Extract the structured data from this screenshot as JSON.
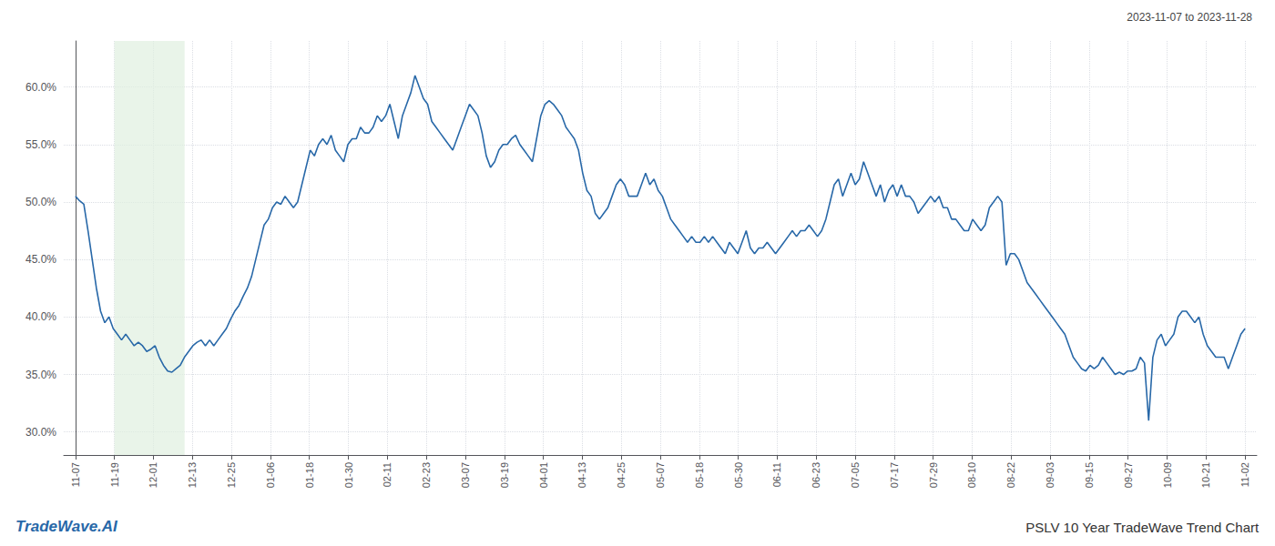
{
  "chart_data": {
    "type": "line",
    "title": "PSLV 10 Year TradeWave Trend Chart",
    "subtitle": "2023-11-07 to 2023-11-28",
    "annotation": "TradeWave.AI",
    "color": "#2868a8",
    "grid": true,
    "highlight": {
      "range": [
        1.0,
        2.8
      ],
      "color": "#dff0e0"
    },
    "xlim": [
      -0.3,
      30.3
    ],
    "xticks": [
      {
        "value": 0,
        "label": "11-07"
      },
      {
        "value": 1,
        "label": "11-19"
      },
      {
        "value": 2,
        "label": "12-01"
      },
      {
        "value": 3,
        "label": "12-13"
      },
      {
        "value": 4,
        "label": "12-25"
      },
      {
        "value": 5,
        "label": "01-06"
      },
      {
        "value": 6,
        "label": "01-18"
      },
      {
        "value": 7,
        "label": "01-30"
      },
      {
        "value": 8,
        "label": "02-11"
      },
      {
        "value": 9,
        "label": "02-23"
      },
      {
        "value": 10,
        "label": "03-07"
      },
      {
        "value": 11,
        "label": "03-19"
      },
      {
        "value": 12,
        "label": "04-01"
      },
      {
        "value": 13,
        "label": "04-13"
      },
      {
        "value": 14,
        "label": "04-25"
      },
      {
        "value": 15,
        "label": "05-07"
      },
      {
        "value": 16,
        "label": "05-18"
      },
      {
        "value": 17,
        "label": "05-30"
      },
      {
        "value": 18,
        "label": "06-11"
      },
      {
        "value": 19,
        "label": "06-23"
      },
      {
        "value": 20,
        "label": "07-05"
      },
      {
        "value": 21,
        "label": "07-17"
      },
      {
        "value": 22,
        "label": "07-29"
      },
      {
        "value": 23,
        "label": "08-10"
      },
      {
        "value": 24,
        "label": "08-22"
      },
      {
        "value": 25,
        "label": "09-03"
      },
      {
        "value": 26,
        "label": "09-15"
      },
      {
        "value": 27,
        "label": "09-27"
      },
      {
        "value": 28,
        "label": "10-09"
      },
      {
        "value": 29,
        "label": "10-21"
      },
      {
        "value": 30,
        "label": "11-02"
      }
    ],
    "ylim": [
      28.0,
      64.0
    ],
    "yticks": [
      {
        "value": 30.0,
        "label": "30.0%"
      },
      {
        "value": 35.0,
        "label": "35.0%"
      },
      {
        "value": 40.0,
        "label": "40.0%"
      },
      {
        "value": 45.0,
        "label": "45.0%"
      },
      {
        "value": 50.0,
        "label": "50.0%"
      },
      {
        "value": 55.0,
        "label": "55.0%"
      },
      {
        "value": 60.0,
        "label": "60.0%"
      }
    ],
    "x": [
      0,
      0.1075,
      0.2151,
      0.3226,
      0.4301,
      0.5376,
      0.6452,
      0.7527,
      0.8602,
      0.9677,
      1.0753,
      1.1828,
      1.2903,
      1.3978,
      1.5054,
      1.6129,
      1.7204,
      1.828,
      1.9355,
      2.043,
      2.1505,
      2.2581,
      2.3656,
      2.4731,
      2.5806,
      2.6882,
      2.7957,
      2.9032,
      3.0108,
      3.1183,
      3.2258,
      3.3333,
      3.4409,
      3.5484,
      3.6559,
      3.7634,
      3.871,
      3.9785,
      4.086,
      4.1935,
      4.3011,
      4.4086,
      4.5161,
      4.6237,
      4.7312,
      4.8387,
      4.9462,
      5.0538,
      5.1613,
      5.2688,
      5.3763,
      5.4839,
      5.5914,
      5.6989,
      5.8065,
      5.914,
      6.0215,
      6.129,
      6.2366,
      6.3441,
      6.4516,
      6.5591,
      6.6667,
      6.7742,
      6.8817,
      6.9892,
      7.0968,
      7.2043,
      7.3118,
      7.4194,
      7.5269,
      7.6344,
      7.7419,
      7.8495,
      7.957,
      8.0645,
      8.172,
      8.2796,
      8.3871,
      8.4946,
      8.6022,
      8.7097,
      8.8172,
      8.9247,
      9.0323,
      9.1398,
      9.2473,
      9.3548,
      9.4624,
      9.5699,
      9.6774,
      9.7849,
      9.8925,
      10,
      10.1075,
      10.2151,
      10.3226,
      10.4301,
      10.5376,
      10.6452,
      10.7527,
      10.8602,
      10.9677,
      11.0753,
      11.1828,
      11.2903,
      11.3978,
      11.5054,
      11.6129,
      11.7204,
      11.828,
      11.9355,
      12.043,
      12.1505,
      12.2581,
      12.3656,
      12.4731,
      12.5806,
      12.6882,
      12.7957,
      12.9032,
      13.0108,
      13.1183,
      13.2258,
      13.3333,
      13.4409,
      13.5484,
      13.6559,
      13.7634,
      13.871,
      13.9785,
      14.086,
      14.1935,
      14.3011,
      14.4086,
      14.5161,
      14.6237,
      14.7312,
      14.8387,
      14.9462,
      15.0538,
      15.1613,
      15.2688,
      15.3763,
      15.4839,
      15.5914,
      15.6989,
      15.8065,
      15.914,
      16.0215,
      16.129,
      16.2366,
      16.3441,
      16.4516,
      16.5591,
      16.6667,
      16.7742,
      16.8817,
      16.9892,
      17.0968,
      17.2043,
      17.3118,
      17.4194,
      17.5269,
      17.6344,
      17.7419,
      17.8495,
      17.957,
      18.0645,
      18.172,
      18.2796,
      18.3871,
      18.4946,
      18.6022,
      18.7097,
      18.8172,
      18.9247,
      19.0323,
      19.1398,
      19.2473,
      19.3548,
      19.4624,
      19.5699,
      19.6774,
      19.7849,
      19.8925,
      20,
      20.1075,
      20.2151,
      20.3226,
      20.4301,
      20.5376,
      20.6452,
      20.7527,
      20.8602,
      20.9677,
      21.0753,
      21.1828,
      21.2903,
      21.3978,
      21.5054,
      21.6129,
      21.7204,
      21.828,
      21.9355,
      22.043,
      22.1505,
      22.2581,
      22.3656,
      22.4731,
      22.5806,
      22.6882,
      22.7957,
      22.9032,
      23.0108,
      23.1183,
      23.2258,
      23.3333,
      23.4409,
      23.5484,
      23.6559,
      23.7634,
      23.871,
      23.9785,
      24.086,
      24.1935,
      24.3011,
      24.4086,
      24.5161,
      24.6237,
      24.7312,
      24.8387,
      24.9462,
      25.0538,
      25.1613,
      25.2688,
      25.3763,
      25.4839,
      25.5914,
      25.6989,
      25.8065,
      25.914,
      26.0215,
      26.129,
      26.2366,
      26.3441,
      26.4516,
      26.5591,
      26.6667,
      26.7742,
      26.8817,
      26.9892,
      27.0968,
      27.2043,
      27.3118,
      27.4194,
      27.5269,
      27.6344,
      27.7419,
      27.8495,
      27.957,
      28.0645,
      28.172,
      28.2796,
      28.3871,
      28.4946,
      28.6022,
      28.7097,
      28.8172,
      28.9247,
      29.0323,
      29.1398,
      29.2473,
      29.3548,
      29.4624,
      29.5699,
      29.6774,
      29.7849,
      29.8925,
      30
    ],
    "values": [
      50.5,
      50.1,
      49.8,
      47.5,
      45.0,
      42.5,
      40.5,
      39.5,
      40.0,
      39.0,
      38.5,
      38.0,
      38.5,
      38.0,
      37.5,
      37.8,
      37.5,
      37.0,
      37.2,
      37.5,
      36.5,
      35.8,
      35.3,
      35.2,
      35.5,
      35.8,
      36.5,
      37.0,
      37.5,
      37.8,
      38.0,
      37.5,
      38.0,
      37.5,
      38.0,
      38.5,
      39.0,
      39.8,
      40.5,
      41.0,
      41.8,
      42.5,
      43.5,
      45.0,
      46.5,
      48.0,
      48.5,
      49.5,
      50.0,
      49.8,
      50.5,
      50.0,
      49.5,
      50.0,
      51.5,
      53.0,
      54.5,
      54.0,
      55.0,
      55.5,
      55.0,
      55.8,
      54.5,
      54.0,
      53.5,
      55.0,
      55.5,
      55.5,
      56.5,
      56.0,
      56.0,
      56.5,
      57.5,
      57.0,
      57.5,
      58.5,
      57.0,
      55.5,
      57.5,
      58.5,
      59.5,
      61.0,
      60.0,
      59.0,
      58.5,
      57.0,
      56.5,
      56.0,
      55.5,
      55.0,
      54.5,
      55.5,
      56.5,
      57.5,
      58.5,
      58.0,
      57.5,
      56.0,
      54.0,
      53.0,
      53.5,
      54.5,
      55.0,
      55.0,
      55.5,
      55.8,
      55.0,
      54.5,
      54.0,
      53.5,
      55.5,
      57.5,
      58.5,
      58.8,
      58.5,
      58.0,
      57.5,
      56.5,
      56.0,
      55.5,
      54.5,
      52.5,
      51.0,
      50.5,
      49.0,
      48.5,
      49.0,
      49.5,
      50.5,
      51.5,
      52.0,
      51.5,
      50.5,
      50.5,
      50.5,
      51.5,
      52.5,
      51.5,
      52.0,
      51.0,
      50.5,
      49.5,
      48.5,
      48.0,
      47.5,
      47.0,
      46.5,
      47.0,
      46.5,
      46.5,
      47.0,
      46.5,
      47.0,
      46.5,
      46.0,
      45.5,
      46.5,
      46.0,
      45.5,
      46.5,
      47.5,
      46.0,
      45.5,
      46.0,
      46.0,
      46.5,
      46.0,
      45.5,
      46.0,
      46.5,
      47.0,
      47.5,
      47.0,
      47.5,
      47.5,
      48.0,
      47.5,
      47.0,
      47.5,
      48.5,
      50.0,
      51.5,
      52.0,
      50.5,
      51.5,
      52.5,
      51.5,
      52.0,
      53.5,
      52.5,
      51.5,
      50.5,
      51.5,
      50.0,
      51.0,
      51.5,
      50.5,
      51.5,
      50.5,
      50.5,
      50.0,
      49.0,
      49.5,
      50.0,
      50.5,
      50.0,
      50.5,
      49.5,
      49.5,
      48.5,
      48.5,
      48.0,
      47.5,
      47.5,
      48.5,
      48.0,
      47.5,
      48.0,
      49.5,
      50.0,
      50.5,
      50.0,
      44.5,
      45.5,
      45.5,
      45.0,
      44.0,
      43.0,
      42.5,
      42.0,
      41.5,
      41.0,
      40.5,
      40.0,
      39.5,
      39.0,
      38.5,
      37.5,
      36.5,
      36.0,
      35.5,
      35.3,
      35.8,
      35.5,
      35.8,
      36.5,
      36.0,
      35.5,
      35.0,
      35.2,
      35.0,
      35.3,
      35.3,
      35.5,
      36.5,
      36.0,
      31.0,
      36.5,
      38.0,
      38.5,
      37.5,
      38.0,
      38.5,
      40.0,
      40.5,
      40.5,
      40.0,
      39.5,
      40.0,
      38.5,
      37.5,
      37.0,
      36.5,
      36.5,
      36.5,
      35.5,
      36.5,
      37.5,
      38.5,
      39.0
    ]
  }
}
